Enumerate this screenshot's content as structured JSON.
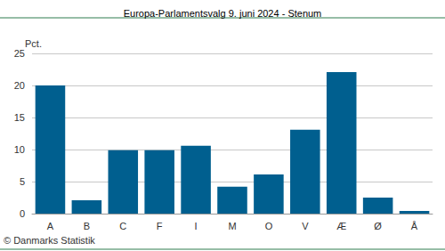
{
  "chart_data": {
    "type": "bar",
    "title": "Europa-Parlamentsvalg 9. juni 2024 - Stenum",
    "ylabel": "Pct.",
    "annotations": [
      "© Danmarks Statistik"
    ],
    "categories": [
      "A",
      "B",
      "C",
      "F",
      "I",
      "M",
      "O",
      "V",
      "Æ",
      "Ø",
      "Å"
    ],
    "values": [
      20.0,
      2.1,
      9.9,
      9.9,
      10.6,
      4.2,
      6.1,
      13.1,
      22.1,
      2.5,
      0.4
    ],
    "color": "#005f8f",
    "ylim": [
      0,
      25
    ],
    "yticks": [
      0,
      5,
      10,
      15,
      20,
      25
    ],
    "grid": true
  }
}
